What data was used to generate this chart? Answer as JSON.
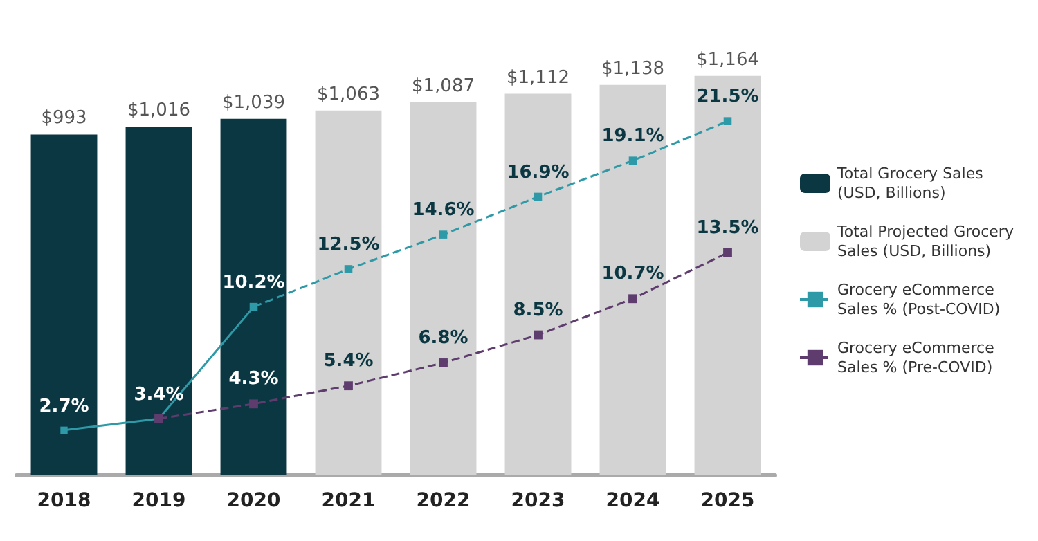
{
  "chart_data": {
    "type": "bar",
    "categories": [
      "2018",
      "2019",
      "2020",
      "2021",
      "2022",
      "2023",
      "2024",
      "2025"
    ],
    "series": [
      {
        "name": "Total Grocery Sales (USD, Billions)",
        "color": "#0b3742",
        "values": [
          993,
          1016,
          1039,
          null,
          null,
          null,
          null,
          null
        ],
        "value_labels": [
          "$993",
          "$1,016",
          "$1,039",
          null,
          null,
          null,
          null,
          null
        ]
      },
      {
        "name": "Total Projected Grocery Sales (USD, Billions)",
        "color": "#d3d3d3",
        "values": [
          null,
          null,
          null,
          1063,
          1087,
          1112,
          1138,
          1164
        ],
        "value_labels": [
          null,
          null,
          null,
          "$1,063",
          "$1,087",
          "$1,112",
          "$1,138",
          "$1,164"
        ]
      },
      {
        "type": "line",
        "axis": "y2",
        "color": "#2e9aa8",
        "line_style": "solid",
        "values": [
          2.7,
          3.4,
          10.2,
          null,
          null,
          null,
          null,
          null
        ],
        "value_labels": [
          "2.7%",
          "3.4%",
          "10.2%",
          null,
          null,
          null,
          null,
          null
        ]
      },
      {
        "name": "Grocery eCommerce Sales % (Post-COVID)",
        "type": "line",
        "axis": "y2",
        "color": "#2e9aa8",
        "line_style": "dashed",
        "values": [
          null,
          null,
          10.2,
          12.5,
          14.6,
          16.9,
          19.1,
          21.5
        ],
        "value_labels": [
          null,
          null,
          null,
          "12.5%",
          "14.6%",
          "16.9%",
          "19.1%",
          "21.5%"
        ]
      },
      {
        "name": "Grocery eCommerce Sales % (Pre-COVID)",
        "type": "line",
        "axis": "y2",
        "color": "#5e3d6e",
        "line_style": "dashed",
        "values": [
          null,
          3.4,
          4.3,
          5.4,
          6.8,
          8.5,
          10.7,
          13.5
        ],
        "value_labels": [
          null,
          null,
          "4.3%",
          "5.4%",
          "6.8%",
          "8.5%",
          "10.7%",
          "13.5%"
        ]
      }
    ],
    "stacked": true,
    "tick_labels": "x",
    "grid": false,
    "legend": "right",
    "marker": "square"
  }
}
